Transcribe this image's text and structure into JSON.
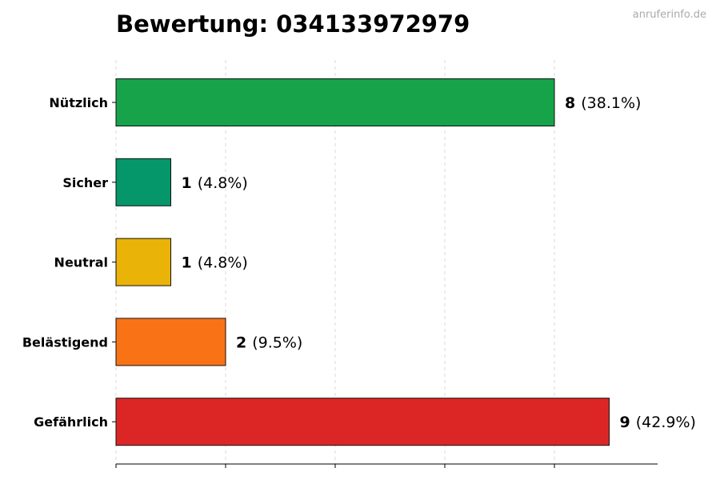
{
  "title": "Bewertung: 034133972979",
  "watermark": "anruferinfo.de",
  "chart_data": {
    "type": "bar",
    "orientation": "horizontal",
    "title": "Bewertung: 034133972979",
    "xlabel": "",
    "ylabel": "",
    "xlim": [
      0,
      9
    ],
    "grid": "vertical dashed",
    "categories": [
      "Nützlich",
      "Sicher",
      "Neutral",
      "Belästigend",
      "Gefährlich"
    ],
    "values": [
      8,
      1,
      1,
      2,
      9
    ],
    "labels": [
      "(38.1%)",
      "(4.8%)",
      "(4.8%)",
      "(9.5%)",
      "(42.9%)"
    ],
    "colors": [
      "#16a34a",
      "#059669",
      "#eab308",
      "#f97316",
      "#dc2626"
    ]
  }
}
